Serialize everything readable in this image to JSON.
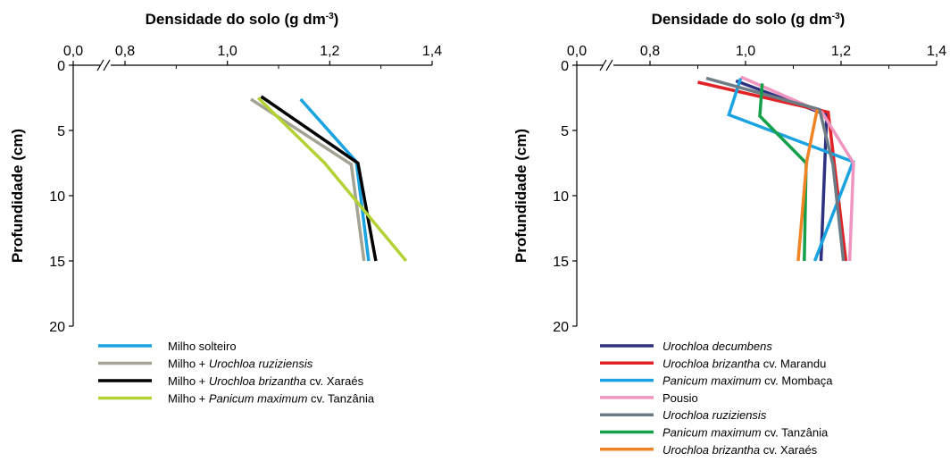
{
  "chart_data": [
    {
      "type": "line",
      "title": {
        "main": "Densidade do solo (g dm",
        "sup": "-3",
        "close": ")"
      },
      "ylabel": "Profundidade (cm)",
      "x_axis": {
        "position": "top",
        "broken_at": "0,0",
        "range": [
          0.7,
          1.4
        ],
        "ticks": [
          {
            "v": 0.8,
            "label": "0,8"
          },
          {
            "v": 1.0,
            "label": "1,0"
          },
          {
            "v": 1.2,
            "label": "1,2"
          },
          {
            "v": 1.4,
            "label": "1,4"
          }
        ],
        "zero_label": "0,0"
      },
      "y_axis": {
        "reversed": true,
        "range": [
          0,
          20
        ],
        "ticks": [
          {
            "v": 0,
            "label": "0"
          },
          {
            "v": 5,
            "label": "5"
          },
          {
            "v": 10,
            "label": "10"
          },
          {
            "v": 15,
            "label": "15"
          },
          {
            "v": 20,
            "label": "20"
          }
        ]
      },
      "series": [
        {
          "legend": [
            {
              "t": "Milho solteiro",
              "i": false
            }
          ],
          "color": "#1aa3e0",
          "points": [
            [
              1.143,
              2.6
            ],
            [
              1.252,
              7.4
            ],
            [
              1.276,
              15
            ]
          ]
        },
        {
          "legend": [
            {
              "t": "Milho + ",
              "i": false
            },
            {
              "t": "Urochloa ruziziensis",
              "i": true
            }
          ],
          "color": "#a4a292",
          "points": [
            [
              1.046,
              2.6
            ],
            [
              1.242,
              7.6
            ],
            [
              1.267,
              15
            ]
          ]
        },
        {
          "legend": [
            {
              "t": "Milho + ",
              "i": false
            },
            {
              "t": "Urochloa brizantha",
              "i": true
            },
            {
              "t": " cv. Xaraés",
              "i": false
            }
          ],
          "color": "#000000",
          "points": [
            [
              1.066,
              2.4
            ],
            [
              1.255,
              7.5
            ],
            [
              1.29,
              15
            ]
          ]
        },
        {
          "legend": [
            {
              "t": "Milho + ",
              "i": false
            },
            {
              "t": "Panicum maximum",
              "i": true
            },
            {
              "t": " cv. Tanzânia",
              "i": false
            }
          ],
          "color": "#b2d235",
          "points": [
            [
              1.06,
              2.5
            ],
            [
              1.19,
              7.5
            ],
            [
              1.349,
              15
            ]
          ]
        }
      ]
    },
    {
      "type": "line",
      "title": {
        "main": "Densidade do solo (g dm",
        "sup": "-3",
        "close": ")"
      },
      "ylabel": "Profundidade (cm)",
      "x_axis": {
        "position": "top",
        "broken_at": "0,0",
        "range": [
          0.7,
          1.4
        ],
        "ticks": [
          {
            "v": 0.8,
            "label": "0,8"
          },
          {
            "v": 1.0,
            "label": "1,0"
          },
          {
            "v": 1.2,
            "label": "1,2"
          },
          {
            "v": 1.4,
            "label": "1,4"
          }
        ],
        "zero_label": "0,0"
      },
      "y_axis": {
        "reversed": true,
        "range": [
          0,
          20
        ],
        "ticks": [
          {
            "v": 0,
            "label": "0"
          },
          {
            "v": 5,
            "label": "5"
          },
          {
            "v": 10,
            "label": "10"
          },
          {
            "v": 15,
            "label": "15"
          },
          {
            "v": 20,
            "label": "20"
          }
        ]
      },
      "series": [
        {
          "legend": [
            {
              "t": "Urochloa decumbens",
              "i": true
            }
          ],
          "color": "#2e3180",
          "points": [
            [
              0.98,
              1.2
            ],
            [
              1.17,
              3.8
            ],
            [
              1.158,
              15
            ]
          ]
        },
        {
          "legend": [
            {
              "t": "Urochloa brizantha",
              "i": true
            },
            {
              "t": " cv. Marandu",
              "i": false
            }
          ],
          "color": "#e02227",
          "points": [
            [
              0.9,
              1.3
            ],
            [
              1.173,
              3.6
            ],
            [
              1.21,
              15
            ]
          ]
        },
        {
          "legend": [
            {
              "t": "Panicum maximum",
              "i": true
            },
            {
              "t": " cv. Mombaça",
              "i": false
            }
          ],
          "color": "#1aa3e0",
          "points": [
            [
              0.99,
              1.0
            ],
            [
              0.965,
              3.8
            ],
            [
              1.225,
              7.4
            ],
            [
              1.145,
              15
            ]
          ]
        },
        {
          "legend": [
            {
              "t": "Pousio",
              "i": false
            }
          ],
          "color": "#f094c0",
          "points": [
            [
              0.99,
              0.9
            ],
            [
              1.16,
              3.6
            ],
            [
              1.226,
              7.5
            ],
            [
              1.218,
              15
            ]
          ]
        },
        {
          "legend": [
            {
              "t": "Urochloa ruziziensis",
              "i": true
            }
          ],
          "color": "#6d7b84",
          "points": [
            [
              0.918,
              1.0
            ],
            [
              1.155,
              3.4
            ],
            [
              1.183,
              7.6
            ],
            [
              1.205,
              15
            ]
          ]
        },
        {
          "legend": [
            {
              "t": "Panicum maximum",
              "i": true
            },
            {
              "t": " cv. Tanzânia",
              "i": false
            }
          ],
          "color": "#14a04a",
          "points": [
            [
              1.035,
              1.4
            ],
            [
              1.03,
              3.9
            ],
            [
              1.127,
              7.5
            ],
            [
              1.123,
              15
            ]
          ]
        },
        {
          "legend": [
            {
              "t": "Urochloa brizantha",
              "i": true
            },
            {
              "t": " cv. Xaraés",
              "i": false
            }
          ],
          "color": "#f08424",
          "points": [
            [
              1.15,
              3.4
            ],
            [
              1.128,
              7.4
            ],
            [
              1.11,
              15
            ]
          ]
        }
      ]
    }
  ]
}
